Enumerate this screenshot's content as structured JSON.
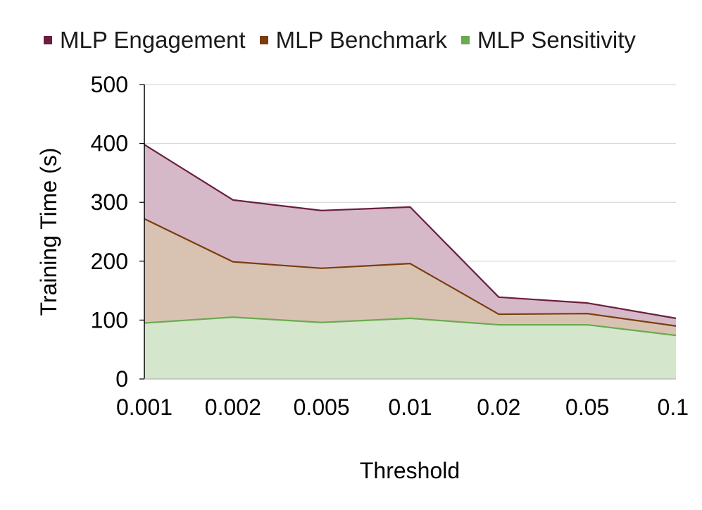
{
  "chart_data": {
    "type": "area",
    "title": "",
    "xlabel": "Threshold",
    "ylabel": "Training Time (s)",
    "categories": [
      "0.001",
      "0.002",
      "0.005",
      "0.01",
      "0.02",
      "0.05",
      "0.1"
    ],
    "ylim": [
      0,
      500
    ],
    "yticks": [
      "0",
      "100",
      "200",
      "300",
      "400",
      "500"
    ],
    "grid": true,
    "legend_position": "top",
    "series": [
      {
        "name": "MLP Engagement",
        "values": [
          398,
          304,
          286,
          292,
          139,
          129,
          103
        ],
        "line_color": "#6b1e3f",
        "fill_color": "#d6b9c9",
        "swatch_color": "#6b1e3f"
      },
      {
        "name": "MLP Benchmark",
        "values": [
          272,
          199,
          188,
          196,
          110,
          111,
          90
        ],
        "line_color": "#7a3e0e",
        "fill_color": "#d8c3b2",
        "swatch_color": "#7a3e0e"
      },
      {
        "name": "MLP Sensitivity",
        "values": [
          95,
          105,
          96,
          103,
          92,
          92,
          74
        ],
        "line_color": "#6aaa50",
        "fill_color": "#d4e6cb",
        "swatch_color": "#6aaa50"
      }
    ]
  }
}
